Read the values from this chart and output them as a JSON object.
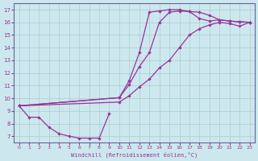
{
  "xlabel": "Windchill (Refroidissement éolien,°C)",
  "background_color": "#cce8ee",
  "grid_color": "#aacccc",
  "line_color": "#993399",
  "spine_color": "#666699",
  "xlim": [
    -0.5,
    23.5
  ],
  "ylim": [
    6.5,
    17.5
  ],
  "xticks": [
    0,
    1,
    2,
    3,
    4,
    5,
    6,
    7,
    8,
    9,
    10,
    11,
    12,
    13,
    14,
    15,
    16,
    17,
    18,
    19,
    20,
    21,
    22,
    23
  ],
  "yticks": [
    7,
    8,
    9,
    10,
    11,
    12,
    13,
    14,
    15,
    16,
    17
  ],
  "curve_bottom_x": [
    0,
    1,
    2,
    3,
    4,
    5,
    6,
    7,
    8,
    9
  ],
  "curve_bottom_y": [
    9.4,
    8.5,
    8.5,
    7.7,
    7.2,
    7.0,
    6.85,
    6.85,
    6.85,
    8.8
  ],
  "curve_top_x": [
    0,
    10,
    11,
    12,
    13,
    14,
    15,
    16,
    17,
    18,
    19,
    20,
    21,
    22,
    23
  ],
  "curve_top_y": [
    9.4,
    10.05,
    11.4,
    13.6,
    16.8,
    16.9,
    17.0,
    17.0,
    16.85,
    16.3,
    16.1,
    16.2,
    16.1,
    16.05,
    16.0
  ],
  "curve_mid1_x": [
    0,
    10,
    11,
    12,
    13,
    14,
    15,
    16,
    17,
    18,
    19,
    20,
    21,
    22,
    23
  ],
  "curve_mid1_y": [
    9.4,
    10.05,
    11.1,
    12.5,
    13.6,
    16.0,
    16.8,
    16.9,
    16.85,
    16.8,
    16.55,
    16.2,
    16.1,
    16.05,
    16.0
  ],
  "curve_lin_x": [
    0,
    10,
    11,
    12,
    13,
    14,
    15,
    16,
    17,
    18,
    19,
    20,
    21,
    22,
    23
  ],
  "curve_lin_y": [
    9.4,
    9.7,
    10.2,
    10.9,
    11.5,
    12.4,
    13.0,
    14.0,
    15.0,
    15.5,
    15.8,
    16.0,
    15.9,
    15.7,
    16.0
  ]
}
